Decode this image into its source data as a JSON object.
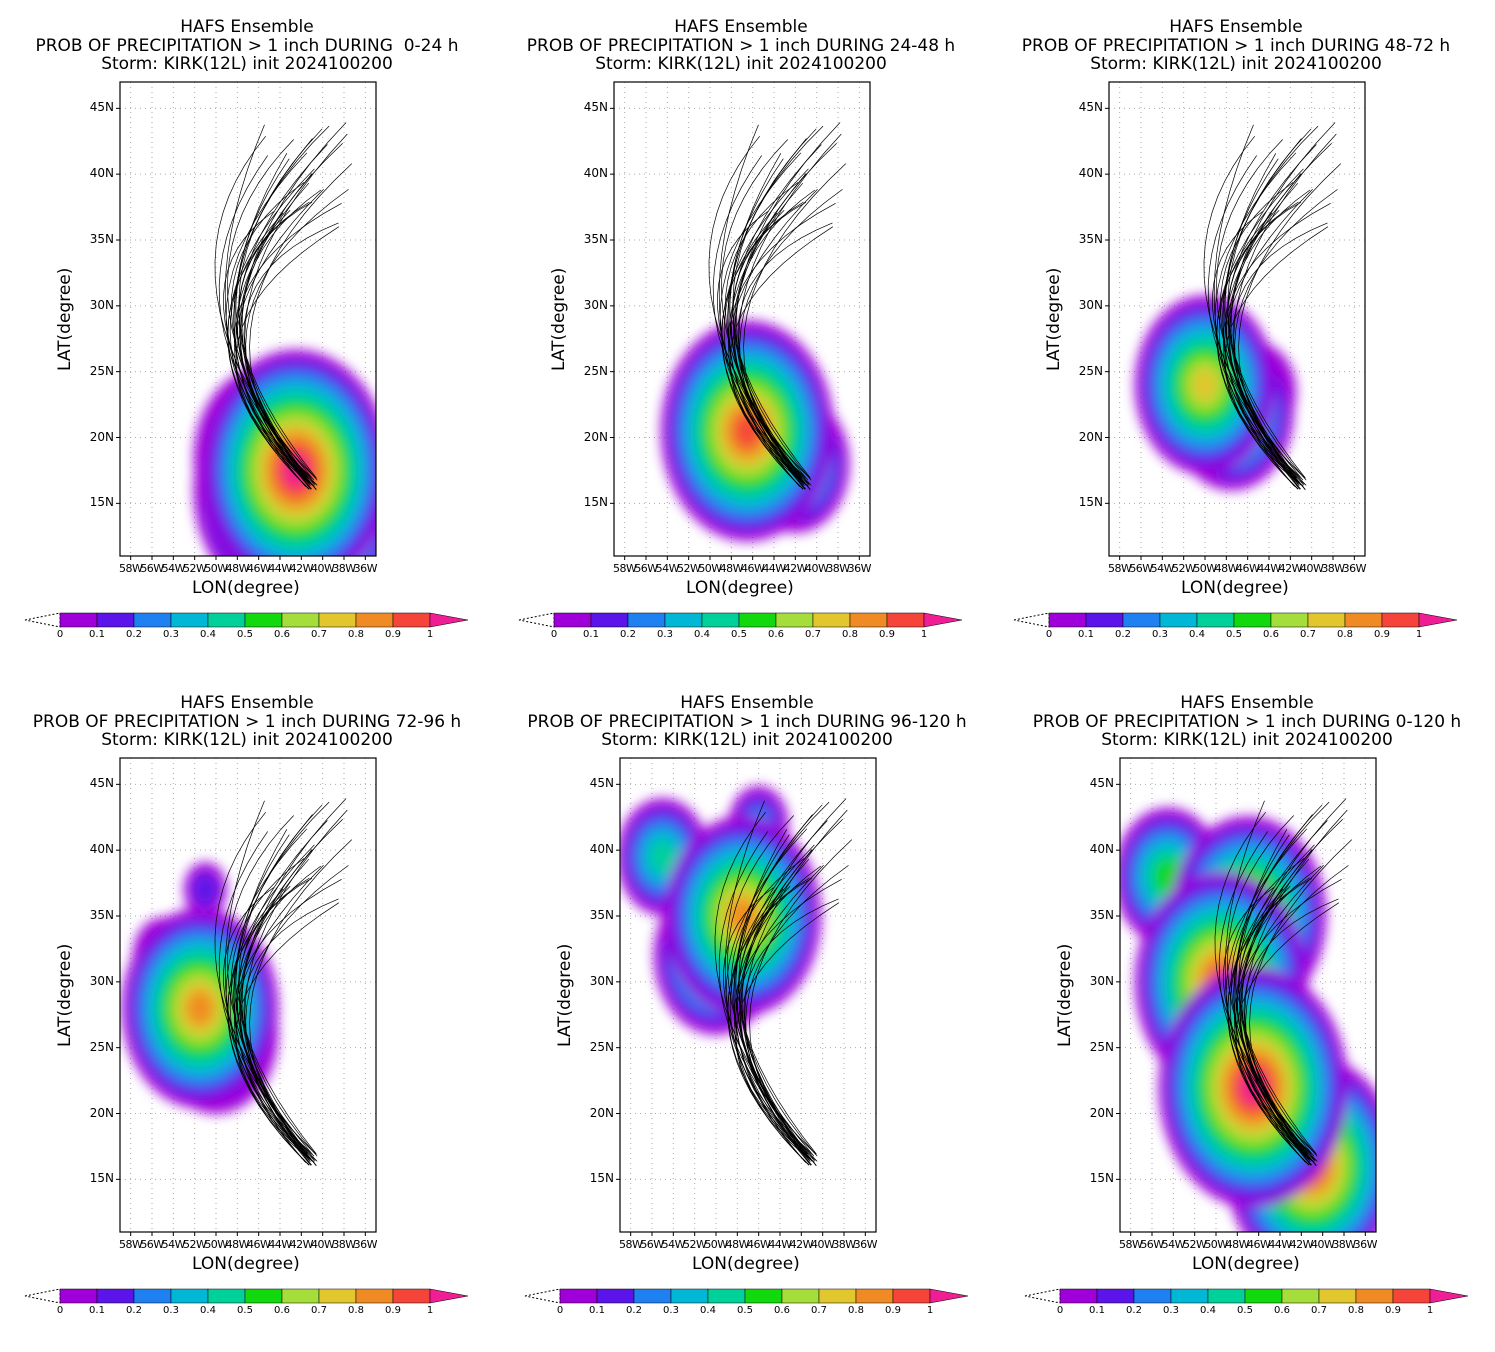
{
  "colors": {
    "levels": [
      "#9f00d9",
      "#5b14e9",
      "#1f80f2",
      "#00b8d6",
      "#00d19a",
      "#12d80e",
      "#a5de3a",
      "#e2c62e",
      "#f08a24",
      "#f5453a",
      "#f01e94"
    ],
    "track": "#000000",
    "grid": "#aaaaaa"
  },
  "common": {
    "line1": "HAFS Ensemble",
    "line3": "Storm: KIRK(12L) init 2024100200",
    "xlabel": "LON(degree)",
    "ylabel": "LAT(degree)",
    "lat_ticks": [
      "45N",
      "40N",
      "35N",
      "30N",
      "25N",
      "20N",
      "15N"
    ],
    "lon_ticks": [
      "58W",
      "56W",
      "54W",
      "52W",
      "50W",
      "48W",
      "46W",
      "44W",
      "42W",
      "40W",
      "38W",
      "36W"
    ],
    "colorbar_ticks": [
      "0",
      "0.1",
      "0.2",
      "0.3",
      "0.4",
      "0.5",
      "0.6",
      "0.7",
      "0.8",
      "0.9",
      "1"
    ]
  },
  "panels": [
    {
      "line2": "PROB OF PRECIPITATION > 1 inch DURING  0-24 h",
      "precip_area": [
        {
          "lat": 18.5,
          "lon": 45.5,
          "prob": 0.7
        },
        {
          "lat": 16,
          "lon": 44,
          "prob": 0.9
        },
        {
          "lat": 14,
          "lon": 40.5,
          "prob": 0.8
        },
        {
          "lat": 17.5,
          "lon": 42.5,
          "prob": 1.0
        }
      ]
    },
    {
      "line2": "PROB OF PRECIPITATION > 1 inch DURING 24-48 h",
      "precip_area": [
        {
          "lat": 20.5,
          "lon": 46.5,
          "prob": 0.9
        },
        {
          "lat": 18,
          "lon": 42,
          "prob": 0.5
        },
        {
          "lat": 21.5,
          "lon": 44,
          "prob": 0.4
        }
      ]
    },
    {
      "line2": "PROB OF PRECIPITATION > 1 inch DURING 48-72 h",
      "precip_area": [
        {
          "lat": 24,
          "lon": 50,
          "prob": 0.7
        },
        {
          "lat": 22,
          "lon": 47.5,
          "prob": 0.6
        },
        {
          "lat": 23.5,
          "lon": 45,
          "prob": 0.3
        }
      ]
    },
    {
      "line2": "PROB OF PRECIPITATION > 1 inch DURING 72-96 h",
      "precip_area": [
        {
          "lat": 28,
          "lon": 51.5,
          "prob": 0.8
        },
        {
          "lat": 32,
          "lon": 55,
          "prob": 0.2
        },
        {
          "lat": 37,
          "lon": 51,
          "prob": 0.1
        },
        {
          "lat": 26,
          "lon": 50,
          "prob": 0.6
        }
      ]
    },
    {
      "line2": "PROB OF PRECIPITATION > 1 inch DURING 96-120 h",
      "precip_area": [
        {
          "lat": 35,
          "lon": 47.5,
          "prob": 0.8
        },
        {
          "lat": 39.5,
          "lon": 55,
          "prob": 0.4
        },
        {
          "lat": 32,
          "lon": 50,
          "prob": 0.6
        },
        {
          "lat": 42,
          "lon": 46,
          "prob": 0.2
        }
      ]
    },
    {
      "line2": "PROB OF PRECIPITATION > 1 inch DURING 0-120 h",
      "precip_area": [
        {
          "lat": 30,
          "lon": 49.5,
          "prob": 0.9
        },
        {
          "lat": 22,
          "lon": 46.5,
          "prob": 1.0
        },
        {
          "lat": 16,
          "lon": 41,
          "prob": 0.9
        },
        {
          "lat": 38,
          "lon": 54.5,
          "prob": 0.5
        },
        {
          "lat": 35,
          "lon": 47,
          "prob": 0.8
        }
      ]
    }
  ]
}
